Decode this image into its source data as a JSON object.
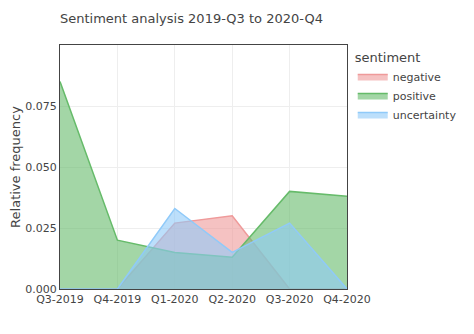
{
  "chart_data": {
    "type": "area",
    "title": "Sentiment analysis 2019-Q3 to 2020-Q4",
    "ylabel": "Relative frequency",
    "categories": [
      "Q3-2019",
      "Q4-2019",
      "Q1-2020",
      "Q2-2020",
      "Q3-2020",
      "Q4-2020"
    ],
    "legend_title": "sentiment",
    "series": [
      {
        "name": "negative",
        "color": "#ef9a9a",
        "values": [
          0.0,
          0.0,
          0.027,
          0.03,
          0.0,
          0.0
        ]
      },
      {
        "name": "positive",
        "color": "#66bb6a",
        "values": [
          0.085,
          0.02,
          0.015,
          0.013,
          0.04,
          0.038
        ]
      },
      {
        "name": "uncertainty",
        "color": "#90caf9",
        "values": [
          0.0,
          0.0,
          0.033,
          0.015,
          0.027,
          0.0
        ]
      }
    ],
    "ylim": [
      0.0,
      0.1
    ],
    "yticks": [
      {
        "value": 0,
        "label": "0.000"
      },
      0.025,
      {
        "value": 0.05,
        "label": "0.050"
      },
      0.075
    ],
    "grid": true,
    "legend": "right"
  }
}
